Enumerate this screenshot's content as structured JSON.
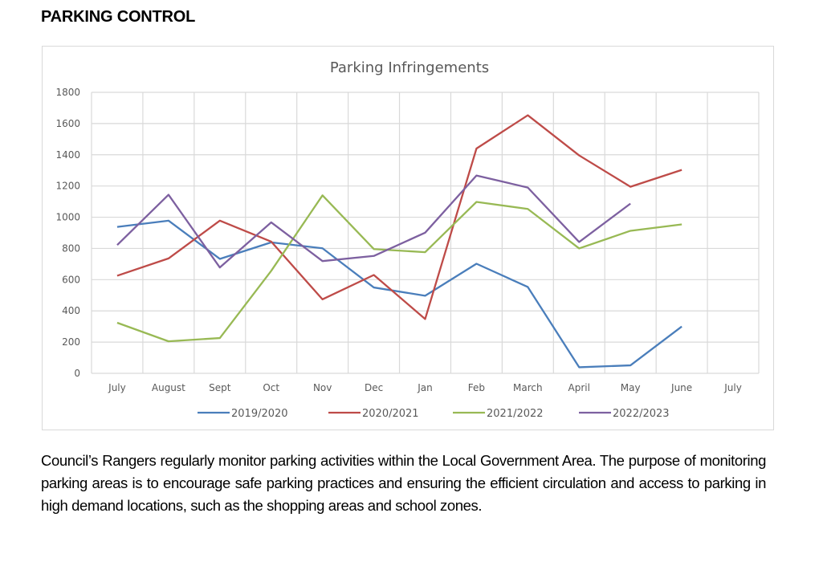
{
  "page": {
    "heading": "PARKING CONTROL",
    "paragraph": "Council’s Rangers regularly monitor parking activities within the Local Government Area. The purpose of monitoring parking areas is to encourage safe parking practices and ensuring the efficient circulation and access to parking in high demand locations, such as the shopping areas and school zones."
  },
  "chart_data": {
    "type": "line",
    "title": "Parking Infringements",
    "xlabel": "",
    "ylabel": "",
    "categories": [
      "July",
      "August",
      "Sept",
      "Oct",
      "Nov",
      "Dec",
      "Jan",
      "Feb",
      "March",
      "April",
      "May",
      "June",
      "July"
    ],
    "ylim": [
      0,
      1800
    ],
    "yticks": [
      0,
      200,
      400,
      600,
      800,
      1000,
      1200,
      1400,
      1600,
      1800
    ],
    "grid": true,
    "legend_position": "bottom",
    "series": [
      {
        "name": "2019/2020",
        "color": "#4a7ebb",
        "values": [
          938,
          978,
          733,
          839,
          801,
          550,
          497,
          702,
          553,
          39,
          51,
          300,
          null
        ]
      },
      {
        "name": "2020/2021",
        "color": "#be4b48",
        "values": [
          625,
          736,
          978,
          844,
          474,
          630,
          348,
          1440,
          1653,
          1396,
          1195,
          1303,
          null
        ]
      },
      {
        "name": "2021/2022",
        "color": "#98b954",
        "values": [
          324,
          205,
          226,
          656,
          1140,
          796,
          776,
          1098,
          1053,
          800,
          913,
          954,
          null
        ]
      },
      {
        "name": "2022/2023",
        "color": "#7d60a0",
        "values": [
          822,
          1144,
          678,
          967,
          719,
          752,
          901,
          1267,
          1190,
          841,
          1087,
          null,
          null
        ]
      }
    ]
  }
}
